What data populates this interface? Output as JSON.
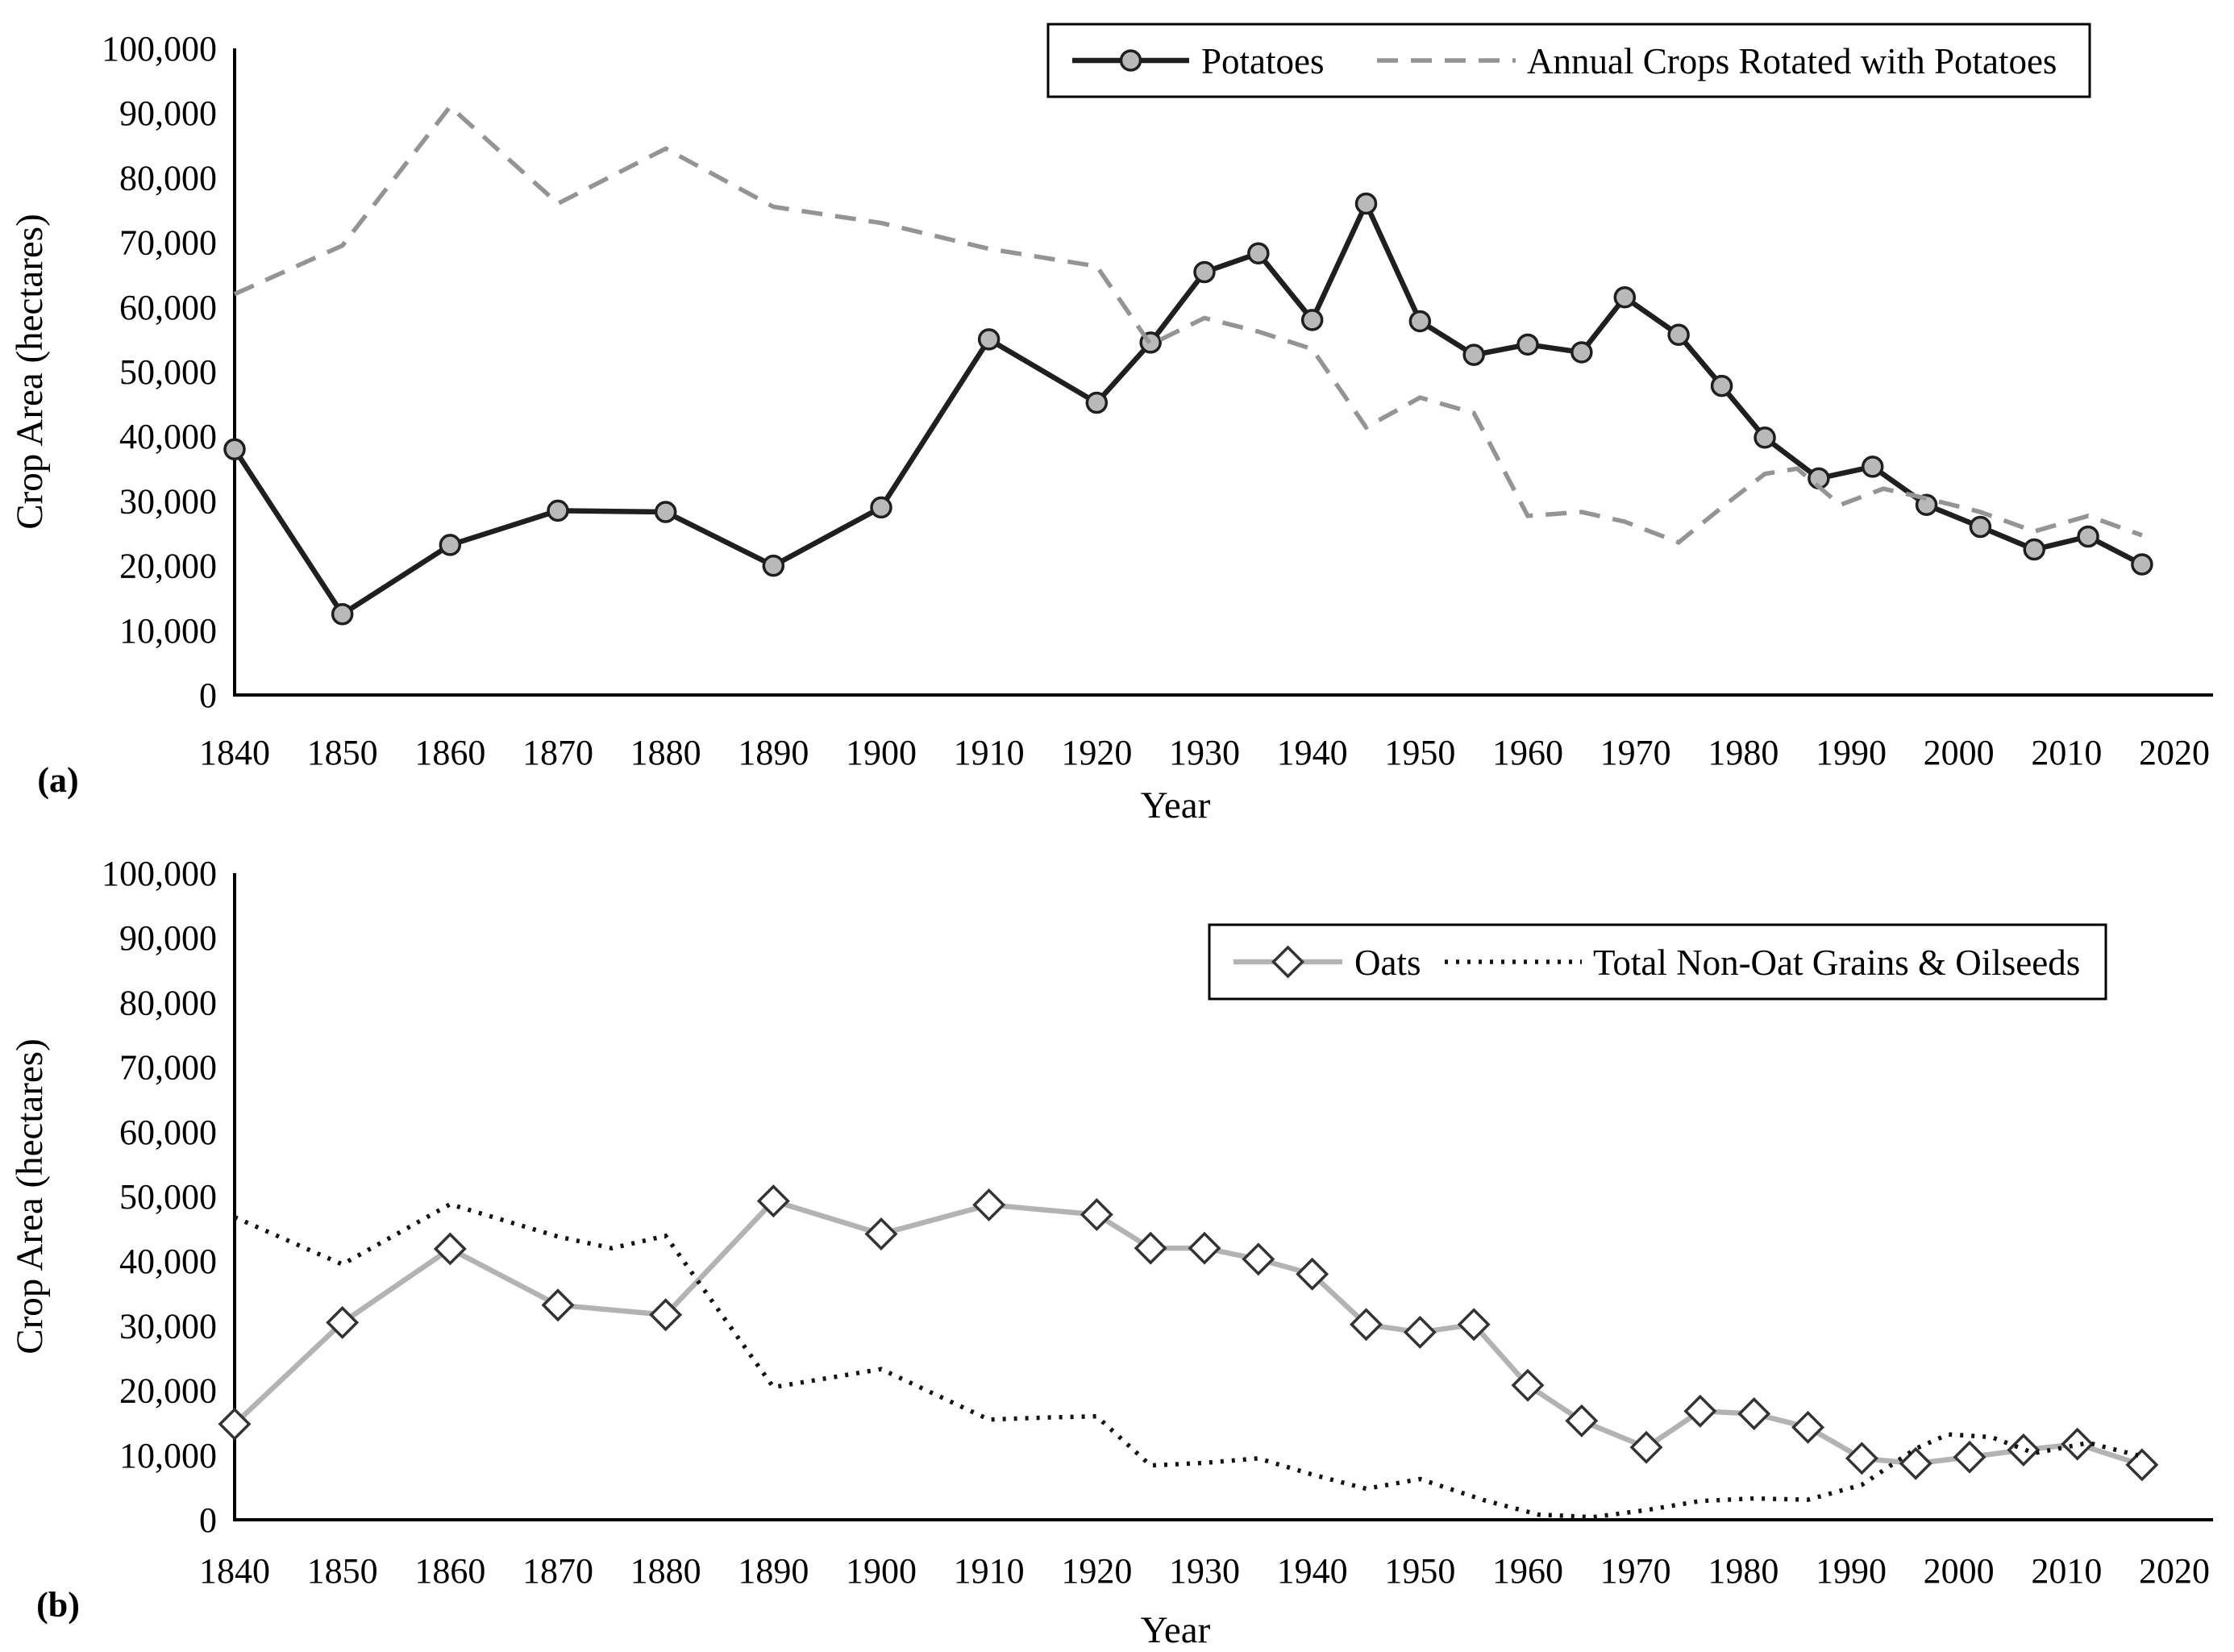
{
  "figure_title": "",
  "accent_colors": {
    "potatoes_line": "#1f1f1f",
    "potatoes_marker_fill": "#b9b9b9",
    "rotated_crops_dashed": "#949494",
    "oats_line": "#b3b3b3",
    "oats_marker_fill": "#ffffff",
    "oats_marker_stroke": "#333333",
    "nonoat_dotted": "#141414",
    "axis": "#000000",
    "background": "#ffffff"
  },
  "chart_data": [
    {
      "type": "line",
      "panel_label": "(a)",
      "title": "",
      "xlabel": "Year",
      "ylabel": "Crop Area (hectares)",
      "xlim": [
        1840,
        2020
      ],
      "ylim": [
        0,
        100000
      ],
      "grid": false,
      "legend_position": "top-right-inside-border-box",
      "xticks": [
        1840,
        1850,
        1860,
        1870,
        1880,
        1890,
        1900,
        1910,
        1920,
        1930,
        1940,
        1950,
        1960,
        1970,
        1980,
        1990,
        2000,
        2010,
        2020
      ],
      "ytick_labels": [
        "0",
        "10,000",
        "20,000",
        "30,000",
        "40,000",
        "50,000",
        "60,000",
        "70,000",
        "80,000",
        "90,000",
        "100,000"
      ],
      "series": [
        {
          "name": "Potatoes",
          "line_style": "solid",
          "marker": "circle",
          "color": "#1f1f1f",
          "marker_fill": "#b9b9b9",
          "x": [
            1840,
            1850,
            1860,
            1870,
            1880,
            1890,
            1900,
            1910,
            1920,
            1925,
            1930,
            1935,
            1940,
            1945,
            1950,
            1955,
            1960,
            1965,
            1969,
            1974,
            1978,
            1982,
            1987,
            1992,
            1997,
            2002,
            2007,
            2012,
            2017
          ],
          "y": [
            38000,
            12500,
            23200,
            28500,
            28300,
            20000,
            29000,
            55000,
            45200,
            54500,
            65400,
            68300,
            58000,
            76000,
            57800,
            52600,
            54200,
            53000,
            61500,
            55700,
            47800,
            39800,
            33500,
            35300,
            29400,
            26000,
            22500,
            24500,
            20200
          ]
        },
        {
          "name": "Annual Crops Rotated with Potatoes",
          "line_style": "dashed",
          "marker": "none",
          "color": "#949494",
          "x": [
            1840,
            1850,
            1860,
            1870,
            1880,
            1890,
            1900,
            1910,
            1920,
            1925,
            1930,
            1935,
            1940,
            1945,
            1950,
            1955,
            1960,
            1965,
            1969,
            1974,
            1978,
            1982,
            1985,
            1989,
            1993,
            1997,
            2002,
            2007,
            2012,
            2017
          ],
          "y": [
            62000,
            69500,
            91000,
            76000,
            84500,
            75500,
            73000,
            69000,
            66300,
            54200,
            58300,
            56200,
            53500,
            41400,
            46000,
            43600,
            27700,
            28300,
            26800,
            23600,
            29000,
            34200,
            35000,
            29400,
            31900,
            30400,
            28300,
            25300,
            27700,
            24700
          ]
        }
      ]
    },
    {
      "type": "line",
      "panel_label": "(b)",
      "title": "",
      "xlabel": "Year",
      "ylabel": "Crop Area (hectares)",
      "xlim": [
        1840,
        2020
      ],
      "ylim": [
        0,
        100000
      ],
      "grid": false,
      "legend_position": "top-right-inside-border-box",
      "xticks": [
        1840,
        1850,
        1860,
        1870,
        1880,
        1890,
        1900,
        1910,
        1920,
        1930,
        1940,
        1950,
        1960,
        1970,
        1980,
        1990,
        2000,
        2010,
        2020
      ],
      "ytick_labels": [
        "0",
        "10,000",
        "20,000",
        "30,000",
        "40,000",
        "50,000",
        "60,000",
        "70,000",
        "80,000",
        "90,000",
        "100,000"
      ],
      "series": [
        {
          "name": "Oats",
          "line_style": "solid",
          "marker": "diamond",
          "color": "#b3b3b3",
          "marker_fill": "#ffffff",
          "marker_stroke": "#333333",
          "x": [
            1840,
            1850,
            1860,
            1870,
            1880,
            1890,
            1900,
            1910,
            1920,
            1925,
            1930,
            1935,
            1940,
            1945,
            1950,
            1955,
            1960,
            1965,
            1971,
            1976,
            1981,
            1986,
            1991,
            1996,
            2001,
            2006,
            2011,
            2017
          ],
          "y": [
            14800,
            30500,
            41900,
            33200,
            31700,
            49300,
            44200,
            48700,
            47200,
            42000,
            42000,
            40300,
            38000,
            30200,
            29000,
            30200,
            20800,
            15300,
            11200,
            16800,
            16400,
            14300,
            9500,
            8700,
            9700,
            10800,
            11700,
            8500
          ]
        },
        {
          "name": "Total Non-Oat Grains & Oilseeds",
          "line_style": "dotted",
          "marker": "none",
          "color": "#141414",
          "x": [
            1840,
            1850,
            1860,
            1870,
            1875,
            1880,
            1890,
            1900,
            1910,
            1915,
            1920,
            1925,
            1930,
            1935,
            1940,
            1945,
            1950,
            1956,
            1961,
            1966,
            1971,
            1976,
            1981,
            1986,
            1991,
            1996,
            1999,
            2003,
            2007,
            2012,
            2017
          ],
          "y": [
            46800,
            39500,
            48800,
            43800,
            42000,
            43900,
            20500,
            23300,
            15500,
            15800,
            16000,
            8400,
            8800,
            9500,
            7000,
            4800,
            6300,
            3000,
            800,
            400,
            1500,
            2900,
            3300,
            3100,
            5400,
            11000,
            13200,
            12800,
            10300,
            11900,
            9800
          ]
        }
      ]
    }
  ]
}
